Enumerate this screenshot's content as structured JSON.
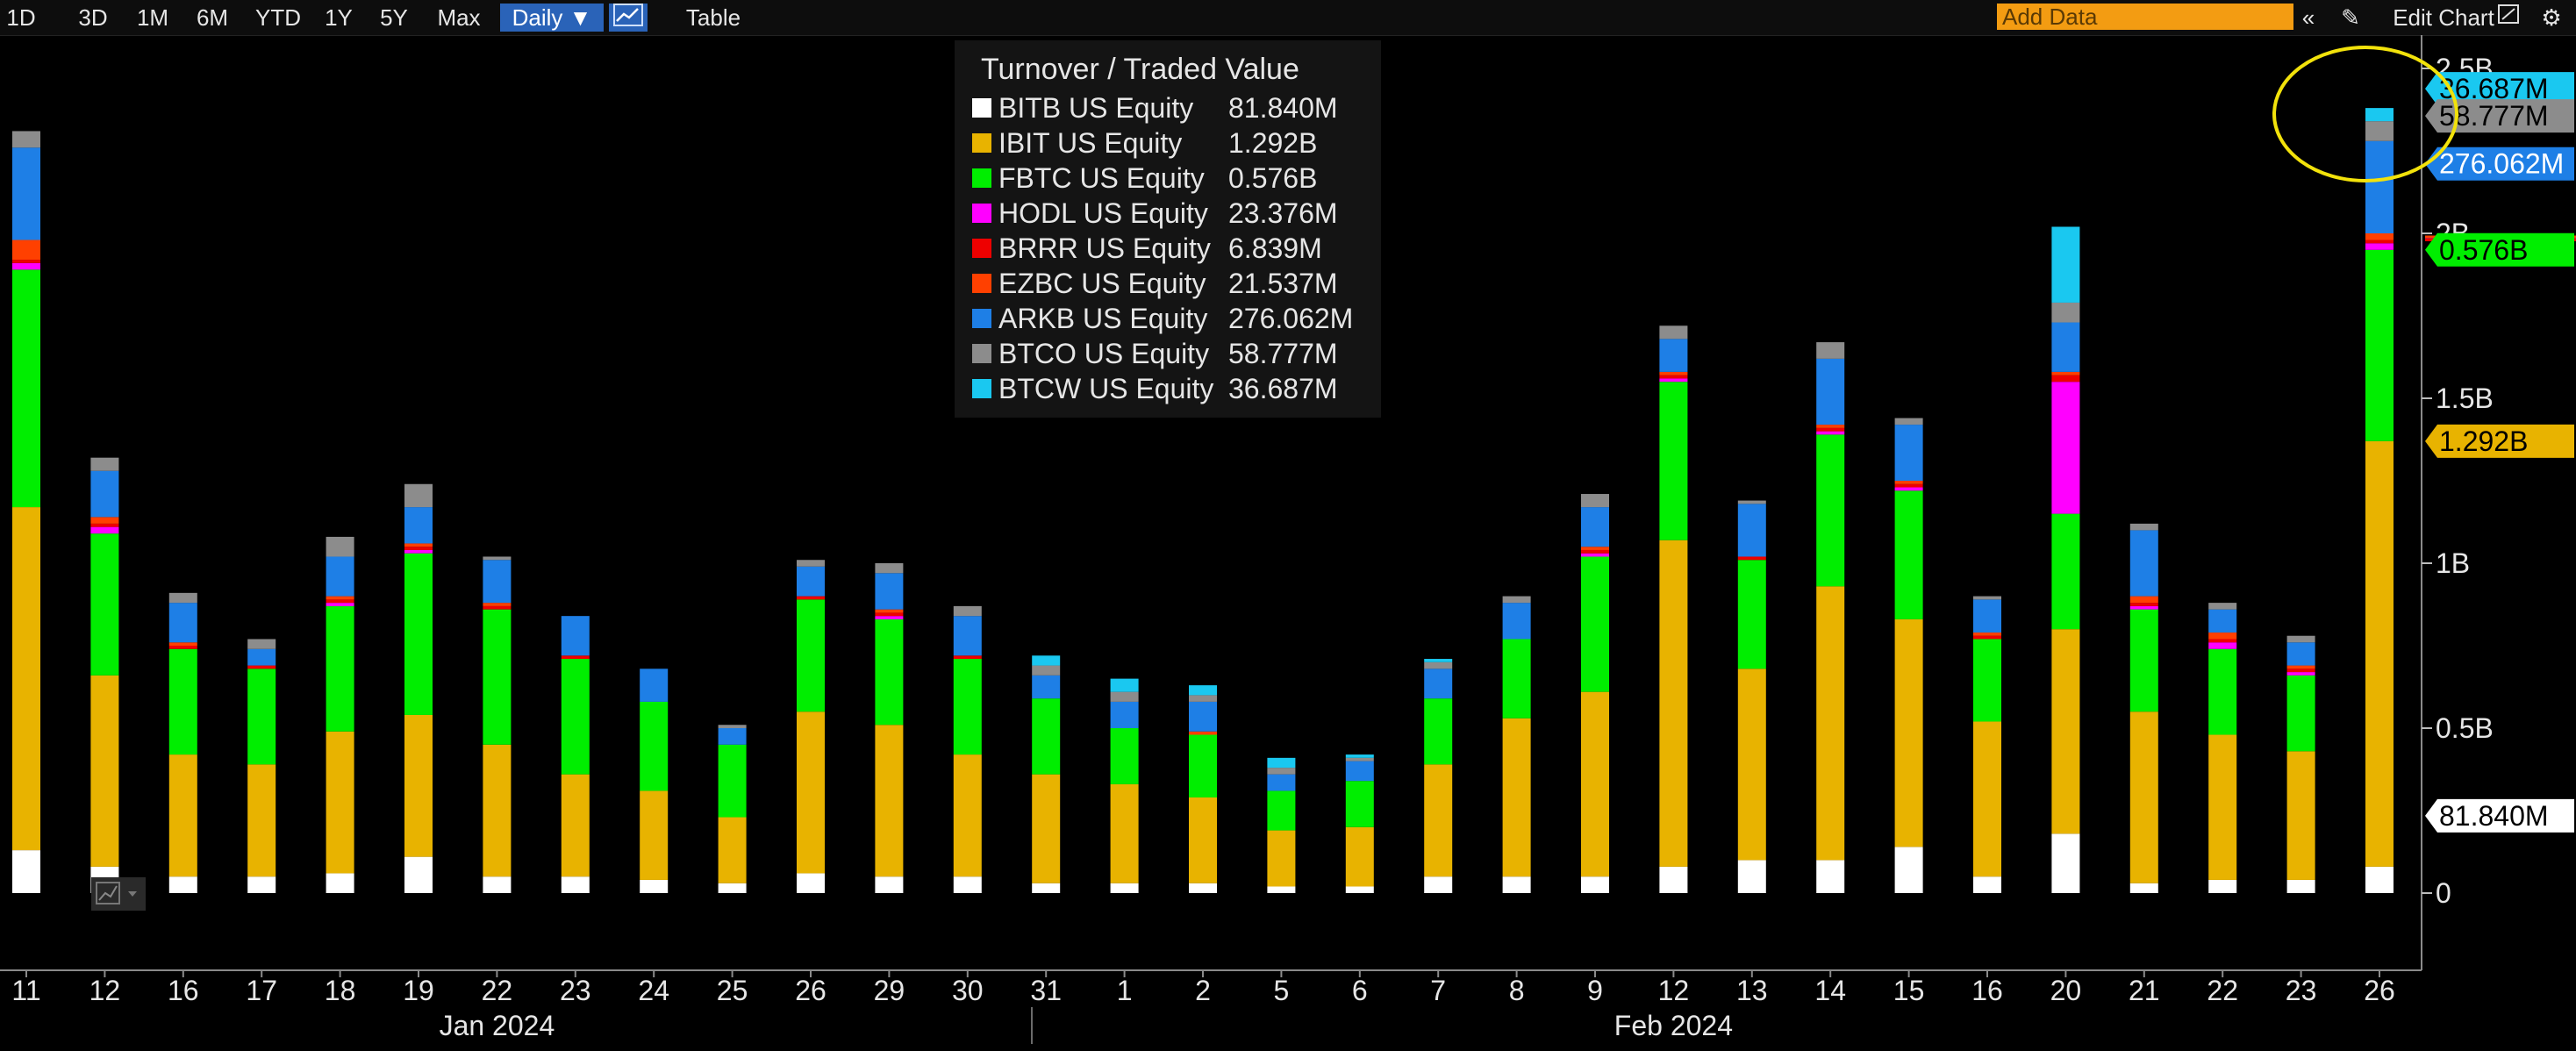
{
  "toolbar": {
    "ranges": [
      "1D",
      "3D",
      "1M",
      "6M",
      "YTD",
      "1Y",
      "5Y",
      "Max"
    ],
    "frequency": "Daily ▼",
    "table": "Table",
    "add_data_placeholder": "Add Data",
    "edit_chart": "Edit Chart"
  },
  "colors": {
    "BITB": "#ffffff",
    "IBIT": "#e8b300",
    "FBTC": "#00ee00",
    "HODL": "#ff00ff",
    "BRRR": "#ee0000",
    "EZBC": "#ff4000",
    "ARKB": "#1e7fe6",
    "BTCO": "#8c8c8c",
    "BTCW": "#1ac8f0",
    "background": "#000000",
    "highlight_circle": "#f2e20b"
  },
  "legend": {
    "title": "Turnover / Traded Value",
    "items": [
      {
        "key": "BITB",
        "label": "BITB US Equity",
        "value": "81.840M"
      },
      {
        "key": "IBIT",
        "label": "IBIT US Equity",
        "value": "1.292B"
      },
      {
        "key": "FBTC",
        "label": "FBTC US Equity",
        "value": "0.576B"
      },
      {
        "key": "HODL",
        "label": "HODL US Equity",
        "value": "23.376M"
      },
      {
        "key": "BRRR",
        "label": "BRRR US Equity",
        "value": "6.839M"
      },
      {
        "key": "EZBC",
        "label": "EZBC US Equity",
        "value": "21.537M"
      },
      {
        "key": "ARKB",
        "label": "ARKB US Equity",
        "value": "276.062M"
      },
      {
        "key": "BTCO",
        "label": "BTCO US Equity",
        "value": "58.777M"
      },
      {
        "key": "BTCW",
        "label": "BTCW US Equity",
        "value": "36.687M"
      }
    ]
  },
  "chart_data": {
    "type": "bar",
    "stacked": true,
    "title": "Turnover / Traded Value",
    "categories": [
      "11",
      "12",
      "16",
      "17",
      "18",
      "19",
      "22",
      "23",
      "24",
      "25",
      "26",
      "29",
      "30",
      "31",
      "1",
      "2",
      "5",
      "6",
      "7",
      "8",
      "9",
      "12",
      "13",
      "14",
      "15",
      "16",
      "20",
      "21",
      "22",
      "23",
      "26"
    ],
    "month_labels": [
      {
        "label": "Jan 2024",
        "category_index": 6
      },
      {
        "label": "Feb 2024",
        "category_index": 21
      }
    ],
    "ylim": [
      0,
      2.5
    ],
    "y_ticks": [
      {
        "value": 0,
        "label": "0"
      },
      {
        "value": 0.5,
        "label": "0.5B"
      },
      {
        "value": 1,
        "label": "1B"
      },
      {
        "value": 1.5,
        "label": "1.5B"
      },
      {
        "value": 2,
        "label": "2B"
      },
      {
        "value": 2.5,
        "label": "2.5B"
      }
    ],
    "unit": "B",
    "series": [
      {
        "name": "BITB US Equity",
        "key": "BITB",
        "values": [
          0.13,
          0.08,
          0.05,
          0.05,
          0.06,
          0.11,
          0.05,
          0.05,
          0.04,
          0.03,
          0.06,
          0.05,
          0.05,
          0.03,
          0.03,
          0.03,
          0.02,
          0.02,
          0.05,
          0.05,
          0.05,
          0.08,
          0.1,
          0.1,
          0.14,
          0.05,
          0.18,
          0.03,
          0.04,
          0.04,
          0.08
        ]
      },
      {
        "name": "IBIT US Equity",
        "key": "IBIT",
        "values": [
          1.04,
          0.58,
          0.37,
          0.34,
          0.43,
          0.43,
          0.4,
          0.31,
          0.27,
          0.2,
          0.49,
          0.46,
          0.37,
          0.33,
          0.3,
          0.26,
          0.17,
          0.18,
          0.34,
          0.48,
          0.56,
          0.99,
          0.58,
          0.83,
          0.69,
          0.47,
          0.62,
          0.52,
          0.44,
          0.39,
          1.29
        ]
      },
      {
        "name": "FBTC US Equity",
        "key": "FBTC",
        "values": [
          0.72,
          0.43,
          0.32,
          0.29,
          0.38,
          0.49,
          0.41,
          0.35,
          0.27,
          0.22,
          0.34,
          0.32,
          0.29,
          0.23,
          0.17,
          0.19,
          0.12,
          0.14,
          0.2,
          0.24,
          0.41,
          0.48,
          0.33,
          0.46,
          0.39,
          0.25,
          0.35,
          0.31,
          0.26,
          0.23,
          0.58
        ]
      },
      {
        "name": "HODL US Equity",
        "key": "HODL",
        "values": [
          0.02,
          0.02,
          0.0,
          0.0,
          0.01,
          0.01,
          0.0,
          0.0,
          0.0,
          0.0,
          0.0,
          0.01,
          0.0,
          0.0,
          0.0,
          0.0,
          0.0,
          0.0,
          0.0,
          0.0,
          0.01,
          0.01,
          0.0,
          0.01,
          0.01,
          0.0,
          0.4,
          0.01,
          0.02,
          0.01,
          0.02
        ]
      },
      {
        "name": "BRRR US Equity",
        "key": "BRRR",
        "values": [
          0.01,
          0.01,
          0.01,
          0.01,
          0.01,
          0.01,
          0.01,
          0.01,
          0.0,
          0.0,
          0.01,
          0.01,
          0.01,
          0.0,
          0.0,
          0.0,
          0.0,
          0.0,
          0.0,
          0.0,
          0.01,
          0.01,
          0.01,
          0.01,
          0.01,
          0.01,
          0.02,
          0.01,
          0.01,
          0.01,
          0.01
        ]
      },
      {
        "name": "EZBC US Equity",
        "key": "EZBC",
        "values": [
          0.06,
          0.02,
          0.01,
          0.0,
          0.01,
          0.01,
          0.01,
          0.0,
          0.0,
          0.0,
          0.0,
          0.01,
          0.0,
          0.0,
          0.0,
          0.01,
          0.0,
          0.0,
          0.0,
          0.0,
          0.01,
          0.01,
          0.0,
          0.01,
          0.01,
          0.01,
          0.01,
          0.02,
          0.02,
          0.01,
          0.02
        ]
      },
      {
        "name": "ARKB US Equity",
        "key": "ARKB",
        "values": [
          0.28,
          0.14,
          0.12,
          0.05,
          0.12,
          0.11,
          0.13,
          0.12,
          0.1,
          0.05,
          0.09,
          0.11,
          0.12,
          0.07,
          0.08,
          0.09,
          0.05,
          0.06,
          0.09,
          0.11,
          0.12,
          0.1,
          0.16,
          0.2,
          0.17,
          0.1,
          0.15,
          0.2,
          0.07,
          0.07,
          0.28
        ]
      },
      {
        "name": "BTCO US Equity",
        "key": "BTCO",
        "values": [
          0.05,
          0.04,
          0.03,
          0.03,
          0.06,
          0.07,
          0.01,
          0.0,
          0.0,
          0.01,
          0.02,
          0.03,
          0.03,
          0.03,
          0.03,
          0.02,
          0.02,
          0.01,
          0.02,
          0.02,
          0.04,
          0.04,
          0.01,
          0.05,
          0.02,
          0.01,
          0.06,
          0.02,
          0.02,
          0.02,
          0.06
        ]
      },
      {
        "name": "BTCW US Equity",
        "key": "BTCW",
        "values": [
          0.0,
          0.0,
          0.0,
          0.0,
          0.0,
          0.0,
          0.0,
          0.0,
          0.0,
          0.0,
          0.0,
          0.0,
          0.0,
          0.03,
          0.04,
          0.03,
          0.03,
          0.01,
          0.01,
          0.0,
          0.0,
          0.0,
          0.0,
          0.0,
          0.0,
          0.0,
          0.23,
          0.0,
          0.0,
          0.0,
          0.04
        ]
      }
    ],
    "right_value_tags": [
      {
        "key": "BTCW",
        "label": "36.687M"
      },
      {
        "key": "BTCO",
        "label": "58.777M"
      },
      {
        "key": "ARKB",
        "label": "276.062M"
      },
      {
        "key": "FBTC",
        "label": "0.576B"
      },
      {
        "key": "IBIT",
        "label": "1.292B"
      },
      {
        "key": "BITB",
        "label": "81.840M"
      }
    ],
    "grid": false
  }
}
